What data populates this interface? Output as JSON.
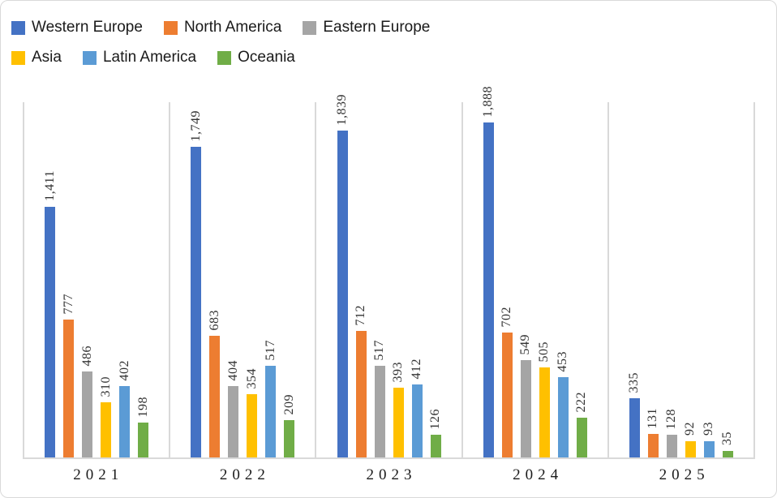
{
  "chart_data": {
    "type": "bar",
    "title": "",
    "categories": [
      "2021",
      "2022",
      "2023",
      "2024",
      "2025"
    ],
    "series": [
      {
        "name": "Western Europe",
        "color": "#4472C4",
        "values": [
          1411,
          1749,
          1839,
          1888,
          335
        ]
      },
      {
        "name": "North America",
        "color": "#ED7D31",
        "values": [
          777,
          683,
          712,
          702,
          131
        ]
      },
      {
        "name": "Eastern Europe",
        "color": "#A5A5A5",
        "values": [
          486,
          404,
          517,
          549,
          128
        ]
      },
      {
        "name": "Asia",
        "color": "#FFC000",
        "values": [
          310,
          354,
          393,
          505,
          92
        ]
      },
      {
        "name": "Latin America",
        "color": "#5B9BD5",
        "values": [
          402,
          517,
          412,
          453,
          93
        ]
      },
      {
        "name": "Oceania",
        "color": "#70AD47",
        "values": [
          198,
          209,
          126,
          222,
          35
        ]
      }
    ],
    "data_labels": {
      "rotation": -90,
      "format": "#,##0"
    },
    "xlabel": "",
    "ylabel": "",
    "ylim": [
      0,
      2000
    ],
    "y_axis_visible": false,
    "grid": "vertical panel dividers only",
    "axis_line_color": "#D9D9D9",
    "legend_position": "top-left, two rows"
  }
}
